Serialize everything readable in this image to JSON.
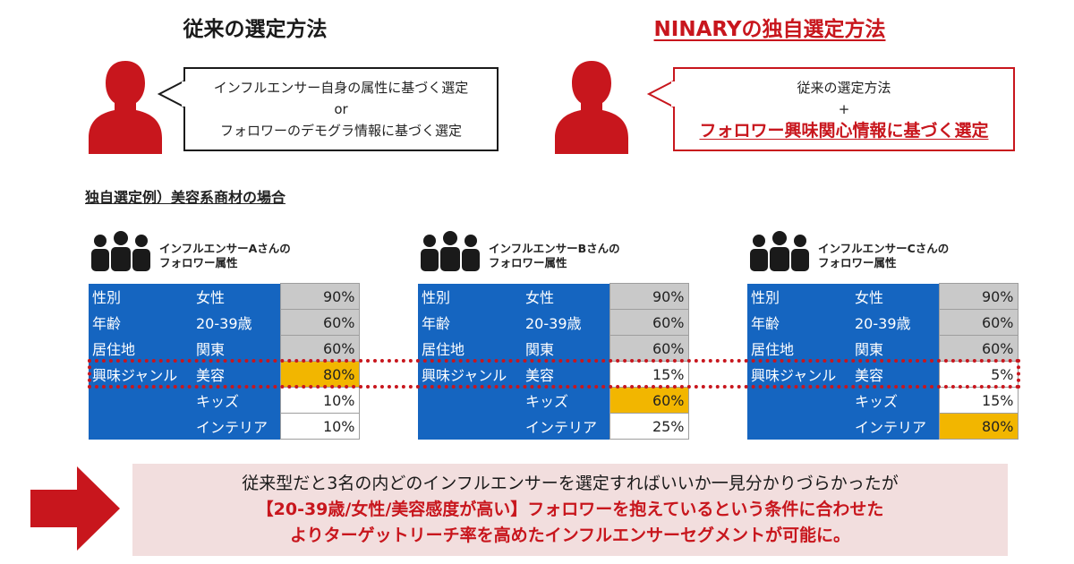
{
  "left": {
    "title": "従来の選定方法",
    "bubble_line1": "インフルエンサー自身の属性に基づく選定",
    "bubble_line2": "or",
    "bubble_line3": "フォロワーのデモグラ情報に基づく選定"
  },
  "right": {
    "title": "NINARYの独自選定方法",
    "bubble_line1": "従来の選定方法",
    "bubble_line2": "+",
    "bubble_line3": "フォロワー興味関心情報に基づく選定"
  },
  "example_title": "独自選定例）美容系商材の場合",
  "cards": [
    {
      "title_line1": "インフルエンサーAさんの",
      "title_line2": "フォロワー属性",
      "rows": [
        {
          "attr": "性別",
          "value": "女性",
          "pct": "90%"
        },
        {
          "attr": "年齢",
          "value": "20-39歳",
          "pct": "60%"
        },
        {
          "attr": "居住地",
          "value": "関東",
          "pct": "60%"
        },
        {
          "attr": "興味ジャンル",
          "value": "美容",
          "pct": "80%"
        },
        {
          "attr": "",
          "value": "キッズ",
          "pct": "10%"
        },
        {
          "attr": "",
          "value": "インテリア",
          "pct": "10%"
        }
      ]
    },
    {
      "title_line1": "インフルエンサーBさんの",
      "title_line2": "フォロワー属性",
      "rows": [
        {
          "attr": "性別",
          "value": "女性",
          "pct": "90%"
        },
        {
          "attr": "年齢",
          "value": "20-39歳",
          "pct": "60%"
        },
        {
          "attr": "居住地",
          "value": "関東",
          "pct": "60%"
        },
        {
          "attr": "興味ジャンル",
          "value": "美容",
          "pct": "15%"
        },
        {
          "attr": "",
          "value": "キッズ",
          "pct": "60%"
        },
        {
          "attr": "",
          "value": "インテリア",
          "pct": "25%"
        }
      ]
    },
    {
      "title_line1": "インフルエンサーCさんの",
      "title_line2": "フォロワー属性",
      "rows": [
        {
          "attr": "性別",
          "value": "女性",
          "pct": "90%"
        },
        {
          "attr": "年齢",
          "value": "20-39歳",
          "pct": "60%"
        },
        {
          "attr": "居住地",
          "value": "関東",
          "pct": "60%"
        },
        {
          "attr": "興味ジャンル",
          "value": "美容",
          "pct": "5%"
        },
        {
          "attr": "",
          "value": "キッズ",
          "pct": "15%"
        },
        {
          "attr": "",
          "value": "インテリア",
          "pct": "80%"
        }
      ]
    }
  ],
  "banner": {
    "line1": "従来型だと3名の内どのインフルエンサーを選定すればいいか一見分かりづらかったが",
    "line2": "【20-39歳/女性/美容感度が高い】フォロワーを抱えているという条件に合わせた",
    "line3": "よりターゲットリーチ率を高めたインフルエンサーセグメントが可能に。"
  },
  "colors": {
    "accent_red": "#c8161d",
    "table_blue": "#1565c0",
    "highlight_gold": "#f2b600",
    "cell_gray": "#c9c9c9",
    "banner_pink": "#f2dede"
  },
  "icons": [
    "person-icon",
    "group-icon",
    "right-arrow-icon"
  ]
}
